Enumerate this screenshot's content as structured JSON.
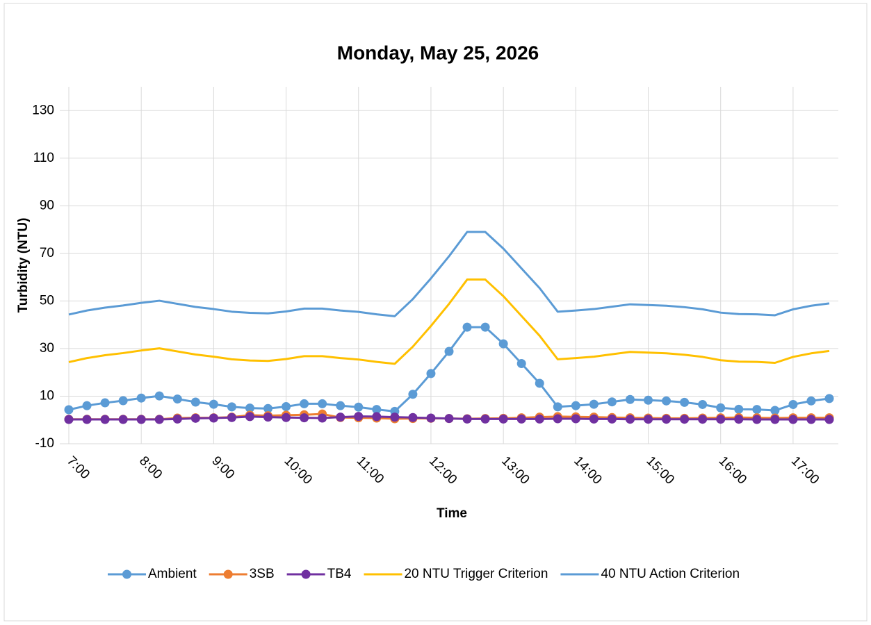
{
  "chart_data": {
    "type": "line",
    "title": "Monday, May 25, 2026",
    "x_label": "Time",
    "y_label": "Turbidity (NTU)",
    "categories": [
      "7:00",
      null,
      null,
      null,
      "8:00",
      null,
      null,
      null,
      "9:00",
      null,
      null,
      null,
      "10:00",
      null,
      null,
      null,
      "11:00",
      null,
      null,
      null,
      "12:00",
      null,
      null,
      null,
      "13:00",
      null,
      null,
      null,
      "14:00",
      null,
      null,
      null,
      "15:00",
      null,
      null,
      null,
      "16:00",
      null,
      null,
      null,
      "17:00",
      null,
      null
    ],
    "series": [
      {
        "name": "Ambient",
        "color": "#5b9bd5",
        "markers": true,
        "values": [
          4.3,
          6,
          7.2,
          8.1,
          9.2,
          10.1,
          8.8,
          7.5,
          6.6,
          5.5,
          5,
          4.8,
          5.6,
          6.8,
          6.8,
          6,
          5.4,
          4.4,
          3.6,
          10.8,
          19.5,
          28.8,
          39,
          39,
          32,
          23.7,
          15.4,
          5.5,
          6,
          6.6,
          7.6,
          8.6,
          8.3,
          8,
          7.4,
          6.5,
          5.1,
          4.5,
          4.4,
          4,
          6.5,
          8,
          9
        ]
      },
      {
        "name": "3SB",
        "color": "#ed7d31",
        "markers": true,
        "values": [
          0.3,
          0.3,
          0.3,
          0.3,
          0.3,
          0.3,
          0.8,
          0.9,
          0.9,
          1.2,
          2,
          1.8,
          2,
          2.2,
          2.5,
          1,
          0.9,
          0.8,
          0.5,
          0.6,
          0.7,
          0.6,
          0.5,
          0.6,
          0.7,
          0.9,
          1.2,
          1.4,
          1.3,
          1.2,
          1,
          0.9,
          0.8,
          0.7,
          0.7,
          0.8,
          0.9,
          1,
          0.9,
          0.8,
          0.9,
          0.9,
          0.9
        ]
      },
      {
        "name": "TB4",
        "color": "#7030a0",
        "markers": true,
        "values": [
          0.2,
          0.2,
          0.2,
          0.2,
          0.2,
          0.2,
          0.4,
          0.7,
          0.8,
          1,
          1.4,
          1.2,
          1,
          0.9,
          0.8,
          1.2,
          1.5,
          1.4,
          1.2,
          1,
          0.8,
          0.6,
          0.4,
          0.4,
          0.4,
          0.4,
          0.4,
          0.5,
          0.5,
          0.4,
          0.4,
          0.3,
          0.3,
          0.3,
          0.3,
          0.3,
          0.3,
          0.3,
          0.2,
          0.2,
          0.2,
          0.2,
          0.2
        ]
      },
      {
        "name": "20 NTU Trigger Criterion",
        "color": "#ffc000",
        "markers": false,
        "values": [
          24.3,
          26,
          27.2,
          28.1,
          29.2,
          30.1,
          28.8,
          27.5,
          26.6,
          25.5,
          25,
          24.8,
          25.6,
          26.8,
          26.8,
          26,
          25.4,
          24.4,
          23.6,
          30.8,
          39.5,
          48.8,
          59,
          59,
          52,
          43.7,
          35.4,
          25.5,
          26,
          26.6,
          27.6,
          28.6,
          28.3,
          28,
          27.4,
          26.5,
          25.1,
          24.5,
          24.4,
          24,
          26.5,
          28,
          29
        ]
      },
      {
        "name": "40 NTU Action Criterion",
        "color": "#5b9bd5",
        "markers": false,
        "values": [
          44.3,
          46,
          47.2,
          48.1,
          49.2,
          50.1,
          48.8,
          47.5,
          46.6,
          45.5,
          45,
          44.8,
          45.6,
          46.8,
          46.8,
          46,
          45.4,
          44.4,
          43.6,
          50.8,
          59.5,
          68.8,
          79,
          79,
          72,
          63.7,
          55.4,
          45.5,
          46,
          46.6,
          47.6,
          48.6,
          48.3,
          48,
          47.4,
          46.5,
          45.1,
          44.5,
          44.4,
          44,
          46.5,
          48,
          49
        ]
      }
    ],
    "ylim": [
      -10,
      140
    ],
    "yticks": [
      -10,
      10,
      30,
      50,
      70,
      90,
      110,
      130
    ],
    "grid": true,
    "legend": "bottom"
  }
}
